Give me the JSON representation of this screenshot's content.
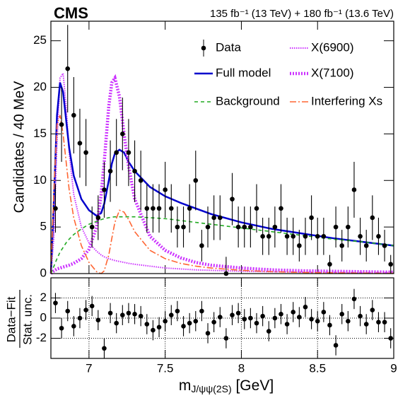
{
  "chart_data": [
    {
      "type": "line",
      "title": "CMS",
      "subtitle": "135 fb⁻¹ (13 TeV) + 180 fb⁻¹ (13.6 TeV)",
      "ylabel": "Candidates / 40 MeV",
      "xlim": [
        6.75,
        9
      ],
      "xticks": [
        7,
        7.5,
        8,
        8.5,
        9
      ],
      "ylim": [
        0,
        27.1
      ],
      "yticks": [
        0,
        5,
        10,
        15,
        20,
        25
      ],
      "grid": false,
      "x": [
        6.75,
        6.77,
        6.79,
        6.81,
        6.83,
        6.85,
        6.87,
        6.9,
        6.95,
        7.0,
        7.05,
        7.08,
        7.1,
        7.13,
        7.15,
        7.17,
        7.2,
        7.23,
        7.26,
        7.3,
        7.4,
        7.5,
        7.6,
        7.7,
        7.8,
        8.0,
        8.2,
        8.4,
        8.6,
        8.8,
        9.0
      ],
      "series": [
        {
          "name": "Data",
          "color": "#000000",
          "style": "points",
          "x": [
            6.78,
            6.82,
            6.86,
            6.9,
            6.94,
            6.98,
            7.02,
            7.06,
            7.1,
            7.14,
            7.18,
            7.22,
            7.26,
            7.3,
            7.34,
            7.38,
            7.42,
            7.46,
            7.5,
            7.54,
            7.58,
            7.62,
            7.66,
            7.7,
            7.74,
            7.78,
            7.82,
            7.86,
            7.9,
            7.94,
            7.98,
            8.02,
            8.06,
            8.1,
            8.14,
            8.18,
            8.22,
            8.26,
            8.3,
            8.34,
            8.38,
            8.42,
            8.46,
            8.5,
            8.54,
            8.58,
            8.62,
            8.66,
            8.7,
            8.74,
            8.78,
            8.82,
            8.86,
            8.9,
            8.94,
            8.98
          ],
          "values": [
            7,
            16,
            22,
            17,
            14,
            13,
            5,
            6,
            9,
            11,
            13,
            15,
            13,
            11,
            10,
            7,
            7,
            7,
            9,
            7,
            5,
            5,
            7,
            10,
            3,
            5,
            6,
            6,
            0,
            8,
            5,
            5,
            5,
            7,
            4,
            4,
            5,
            7,
            4,
            4,
            3,
            4,
            6,
            4,
            4,
            1,
            5,
            3,
            5,
            9,
            4,
            3,
            6,
            4,
            3,
            1
          ],
          "errors": [
            2.6,
            4,
            4.7,
            4.1,
            3.7,
            3.6,
            2.2,
            2.4,
            3,
            3.3,
            3.6,
            3.9,
            3.6,
            3.3,
            3.2,
            2.6,
            2.6,
            2.6,
            3,
            2.6,
            2.2,
            2.2,
            2.6,
            3.2,
            1.7,
            2.2,
            2.4,
            2.4,
            1.8,
            2.8,
            2.2,
            2.2,
            2.2,
            2.6,
            2,
            2,
            2.2,
            2.6,
            2,
            2,
            1.7,
            2,
            2.4,
            2,
            2,
            1,
            2.2,
            1.7,
            2.2,
            3,
            2,
            1.7,
            2.4,
            2,
            1.7,
            1
          ]
        },
        {
          "name": "X(6900)",
          "color": "#cc33ff",
          "style": "dotted",
          "values": [
            0,
            4,
            14,
            21,
            21.5,
            18,
            13,
            8.5,
            5,
            3.3,
            2.4,
            2.0,
            1.8,
            1.6,
            1.5,
            1.4,
            1.3,
            1.2,
            1.1,
            1.0,
            0.8,
            0.6,
            0.5,
            0.4,
            0.35,
            0.25,
            0.2,
            0.15,
            0.12,
            0.1,
            0.08
          ]
        },
        {
          "name": "Full model",
          "color": "#0000cc",
          "style": "solid",
          "values": [
            0,
            8,
            17,
            20.5,
            19.5,
            16.5,
            13.5,
            10.5,
            8,
            6.8,
            6.2,
            6.5,
            7.5,
            10,
            11.8,
            12.9,
            13.3,
            13,
            12,
            11,
            9.3,
            8.3,
            7.6,
            7.0,
            6.4,
            5.5,
            4.8,
            4.3,
            3.8,
            3.4,
            3.0
          ]
        },
        {
          "name": "X(7100)",
          "color": "#cc33ff",
          "style": "dotted-thick",
          "values": [
            0,
            0.3,
            0.5,
            0.6,
            0.7,
            0.8,
            0.9,
            1.1,
            1.6,
            2.6,
            5,
            8.5,
            12,
            18,
            20.5,
            21,
            19,
            15,
            11.5,
            8,
            4,
            2.5,
            1.7,
            1.2,
            0.9,
            0.6,
            0.4,
            0.3,
            0.25,
            0.2,
            0.15
          ]
        },
        {
          "name": "Background",
          "color": "#22aa22",
          "style": "dashed",
          "values": [
            0,
            0.8,
            1.6,
            2.3,
            2.8,
            3.3,
            3.7,
            4.2,
            4.8,
            5.3,
            5.6,
            5.8,
            5.9,
            6.0,
            6.05,
            6.1,
            6.1,
            6.1,
            6.1,
            6.1,
            6.0,
            5.9,
            5.7,
            5.5,
            5.3,
            4.9,
            4.5,
            4.1,
            3.7,
            3.4,
            3.0
          ]
        },
        {
          "name": "Interfering Xs",
          "color": "#ff6633",
          "style": "dash-dot",
          "values": [
            0,
            9,
            16,
            17,
            15,
            12,
            9,
            6,
            3,
            1.2,
            0.2,
            0,
            0.3,
            2,
            3.8,
            5.5,
            6.8,
            6.6,
            5.8,
            4.5,
            2.5,
            1.6,
            1.1,
            0.8,
            0.6,
            0.35,
            0.2,
            0.12,
            0.08,
            0.05,
            0.03
          ]
        }
      ]
    },
    {
      "type": "scatter",
      "ylabel": {
        "numerator": "Data−Fit",
        "denominator": "Stat. unc."
      },
      "xlabel": {
        "main": "m",
        "sub": "J/ψψ(2S)",
        "unit": " [GeV]"
      },
      "xlim": [
        6.75,
        9
      ],
      "xticks": [
        7,
        7.5,
        8,
        8.5,
        9
      ],
      "ylim": [
        -4,
        4
      ],
      "yticks": [
        -2,
        0,
        2
      ],
      "grid": true,
      "series": [
        {
          "color": "#000000",
          "style": "points",
          "x": [
            6.78,
            6.82,
            6.86,
            6.9,
            6.94,
            6.98,
            7.02,
            7.06,
            7.1,
            7.14,
            7.18,
            7.22,
            7.26,
            7.3,
            7.34,
            7.38,
            7.42,
            7.46,
            7.5,
            7.54,
            7.58,
            7.62,
            7.66,
            7.7,
            7.74,
            7.78,
            7.82,
            7.86,
            7.9,
            7.94,
            7.98,
            8.02,
            8.06,
            8.1,
            8.14,
            8.18,
            8.22,
            8.26,
            8.3,
            8.34,
            8.38,
            8.42,
            8.46,
            8.5,
            8.54,
            8.58,
            8.62,
            8.66,
            8.7,
            8.74,
            8.78,
            8.82,
            8.86,
            8.9,
            8.94,
            8.98
          ],
          "values": [
            1.5,
            -1,
            0.7,
            -0.8,
            0,
            0.8,
            1.2,
            -0.2,
            -3,
            0.5,
            -0.5,
            0.3,
            0.5,
            0.4,
            0.2,
            -0.6,
            -1.2,
            -0.9,
            -0.3,
            0.3,
            0.7,
            -0.8,
            -0.5,
            -0.3,
            0.7,
            -1.5,
            -0.4,
            0.1,
            -2,
            0.3,
            0.5,
            -0.1,
            0,
            -0.5,
            0.2,
            -1.3,
            0,
            0.4,
            -0.6,
            0.6,
            0.1,
            1.1,
            -0.1,
            -0.3,
            0.6,
            -0.7,
            -2.7,
            0.4,
            -0.3,
            1.9,
            0.2,
            -0.6,
            0.8,
            -0.4,
            -0.4,
            -2
          ],
          "errors": [
            1,
            1,
            1,
            1,
            1,
            1,
            1,
            1,
            1,
            1,
            1,
            1,
            1,
            1,
            1,
            1,
            1,
            1,
            1,
            1,
            1,
            1,
            1,
            1,
            1,
            1,
            1,
            1,
            1,
            1,
            1,
            1,
            1,
            1,
            1,
            1,
            1,
            1,
            1,
            1,
            1,
            1,
            1,
            1,
            1,
            1,
            1,
            1,
            1,
            1,
            1,
            1,
            1,
            1,
            1,
            1
          ]
        }
      ]
    }
  ]
}
